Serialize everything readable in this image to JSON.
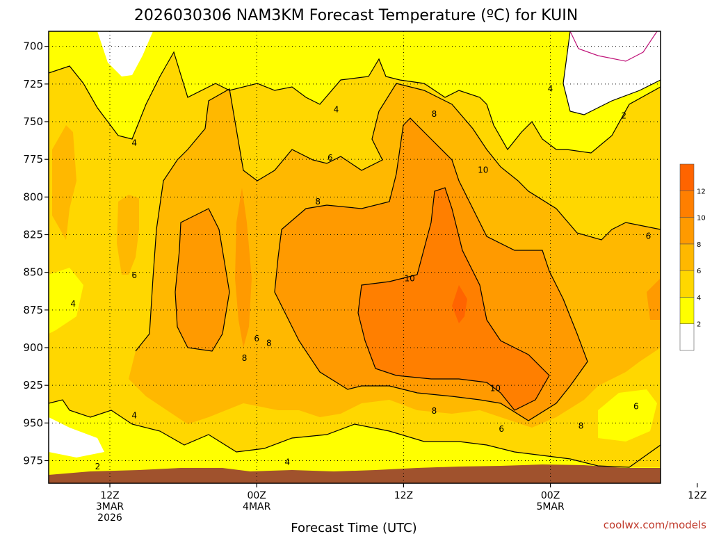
{
  "header": {
    "title": "2026030306 NAM3KM Forecast Temperature (ºC) for KUIN",
    "credit": "coolwx.com/models"
  },
  "chart_data": {
    "type": "contour",
    "title": "2026030306 NAM3KM Forecast Temperature (ºC) for KUIN",
    "xlabel": "Forecast Time (UTC)",
    "ylabel": "",
    "y_axis": {
      "ticks": [
        700,
        725,
        750,
        775,
        800,
        825,
        850,
        875,
        900,
        925,
        950,
        975
      ],
      "inverted": true,
      "unit": "hPa",
      "range": [
        690,
        990
      ]
    },
    "x_axis": {
      "range_hours": [
        7,
        57
      ],
      "ticks": [
        {
          "hour": 12,
          "lines": [
            "12Z",
            "3MAR",
            "2026"
          ]
        },
        {
          "hour": 24,
          "lines": [
            "00Z",
            "4MAR"
          ]
        },
        {
          "hour": 36,
          "lines": [
            "12Z"
          ]
        },
        {
          "hour": 48,
          "lines": [
            "00Z",
            "5MAR"
          ]
        },
        {
          "hour": 60,
          "lines": [
            "12Z"
          ]
        }
      ]
    },
    "grid": true,
    "colorbar": {
      "levels": [
        2,
        4,
        6,
        8,
        10,
        12
      ],
      "tick_labels": [
        "2",
        "4",
        "6",
        "8",
        "10",
        "12"
      ],
      "colors": [
        "#ffffff",
        "#ffff00",
        "#ffd700",
        "#ffb800",
        "#ff9a00",
        "#ff7f00",
        "#ff6400"
      ]
    },
    "contour_labels": [
      {
        "text": "4",
        "hour": 14.0,
        "pressure": 764
      },
      {
        "text": "4",
        "hour": 30.5,
        "pressure": 742
      },
      {
        "text": "4",
        "hour": 48.0,
        "pressure": 728
      },
      {
        "text": "4",
        "hour": 9.0,
        "pressure": 871
      },
      {
        "text": "4",
        "hour": 14.0,
        "pressure": 945
      },
      {
        "text": "4",
        "hour": 26.5,
        "pressure": 976
      },
      {
        "text": "2",
        "hour": 11.0,
        "pressure": 979
      },
      {
        "text": "2",
        "hour": 54.0,
        "pressure": 746
      },
      {
        "text": "6",
        "hour": 30.0,
        "pressure": 774
      },
      {
        "text": "6",
        "hour": 14.0,
        "pressure": 852
      },
      {
        "text": "6",
        "hour": 24.0,
        "pressure": 894
      },
      {
        "text": "6",
        "hour": 44.0,
        "pressure": 954
      },
      {
        "text": "6",
        "hour": 56.0,
        "pressure": 826
      },
      {
        "text": "6",
        "hour": 55.0,
        "pressure": 939
      },
      {
        "text": "8",
        "hour": 29.0,
        "pressure": 803
      },
      {
        "text": "8",
        "hour": 23.0,
        "pressure": 907
      },
      {
        "text": "8",
        "hour": 25.0,
        "pressure": 897
      },
      {
        "text": "8",
        "hour": 38.5,
        "pressure": 745
      },
      {
        "text": "8",
        "hour": 38.5,
        "pressure": 942
      },
      {
        "text": "8",
        "hour": 50.5,
        "pressure": 952
      },
      {
        "text": "10",
        "hour": 42.5,
        "pressure": 782
      },
      {
        "text": "10",
        "hour": 36.5,
        "pressure": 854
      },
      {
        "text": "10",
        "hour": 43.5,
        "pressure": 927
      }
    ]
  }
}
